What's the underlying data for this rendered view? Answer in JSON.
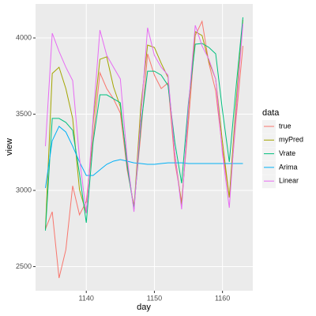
{
  "chart_data": {
    "type": "line",
    "x_label": "day",
    "y_label": "view",
    "legend_title": "data",
    "x": [
      1134,
      1135,
      1136,
      1137,
      1138,
      1139,
      1140,
      1141,
      1142,
      1143,
      1144,
      1145,
      1146,
      1147,
      1148,
      1149,
      1150,
      1151,
      1152,
      1153,
      1154,
      1155,
      1156,
      1157,
      1158,
      1159,
      1160,
      1161,
      1162,
      1163
    ],
    "series": [
      {
        "name": "true",
        "color": "#F8766D",
        "values": [
          2746,
          2860,
          2425,
          2611,
          3030,
          2840,
          2927,
          3340,
          3772,
          3668,
          3600,
          3507,
          3135,
          2900,
          3368,
          3896,
          3756,
          3668,
          3705,
          3187,
          2927,
          3445,
          4016,
          4109,
          3834,
          3653,
          3264,
          2953,
          3472,
          3948
        ]
      },
      {
        "name": "myPred",
        "color": "#A3A500",
        "values": [
          2746,
          3767,
          3808,
          3668,
          3472,
          3005,
          2850,
          3445,
          3860,
          3876,
          3679,
          3549,
          3187,
          2876,
          3549,
          3953,
          3938,
          3834,
          3741,
          3238,
          2902,
          3523,
          4041,
          4016,
          3845,
          3731,
          3316,
          2953,
          3575,
          4119
        ]
      },
      {
        "name": "Vrate",
        "color": "#00BF7D",
        "values": [
          2736,
          3472,
          3472,
          3446,
          3394,
          3109,
          2788,
          3316,
          3627,
          3627,
          3601,
          3575,
          3161,
          2876,
          3420,
          3782,
          3782,
          3756,
          3689,
          3316,
          3047,
          3575,
          3959,
          3964,
          3938,
          3896,
          3523,
          3187,
          3679,
          4135
        ]
      },
      {
        "name": "Arima",
        "color": "#00B0F6",
        "values": [
          3016,
          3326,
          3420,
          3383,
          3290,
          3187,
          3098,
          3098,
          3135,
          3171,
          3192,
          3202,
          3192,
          3181,
          3176,
          3171,
          3171,
          3176,
          3181,
          3181,
          3181,
          3176,
          3176,
          3176,
          3176,
          3176,
          3176,
          3176,
          3176,
          3176
        ]
      },
      {
        "name": "Linear",
        "color": "#E76BF3",
        "values": [
          3290,
          4031,
          3912,
          3808,
          3720,
          3212,
          2850,
          3472,
          4052,
          3886,
          3808,
          3731,
          3212,
          2860,
          3472,
          4067,
          3886,
          3808,
          3756,
          3238,
          2876,
          3549,
          4083,
          3948,
          3860,
          3731,
          3238,
          2886,
          3523,
          4093
        ]
      }
    ],
    "xlim": [
      1132.55,
      1164.45
    ],
    "xticks": [
      1140,
      1150,
      1160
    ],
    "ylim": [
      2342,
      4223
    ],
    "yticks": [
      2500,
      3000,
      3500,
      4000
    ],
    "grid": true,
    "legend": "right"
  }
}
